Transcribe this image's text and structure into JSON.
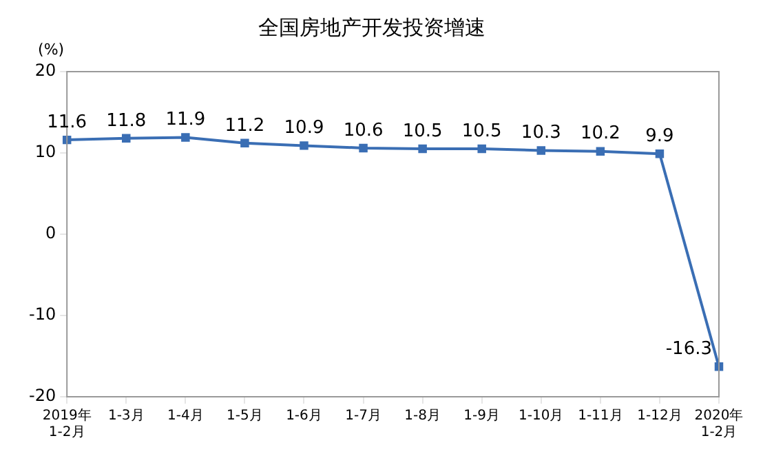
{
  "chart_data": {
    "type": "line",
    "title": "全国房地产开发投资增速",
    "ylabel": "(%)",
    "categories": [
      "2019年\n1-2月",
      "1-3月",
      "1-4月",
      "1-5月",
      "1-6月",
      "1-7月",
      "1-8月",
      "1-9月",
      "1-10月",
      "1-11月",
      "1-12月",
      "2020年\n1-2月"
    ],
    "series": [
      {
        "color": "#3a6eb4",
        "values": [
          11.6,
          11.8,
          11.9,
          11.2,
          10.9,
          10.6,
          10.5,
          10.5,
          10.3,
          10.2,
          9.9,
          -16.3
        ]
      }
    ],
    "ylim": [
      -20,
      20
    ],
    "yticks": [
      -20,
      -10,
      0,
      10,
      20
    ],
    "grid": false,
    "legend": false,
    "marker": "square",
    "line_style": "solid",
    "data_labels": true
  }
}
